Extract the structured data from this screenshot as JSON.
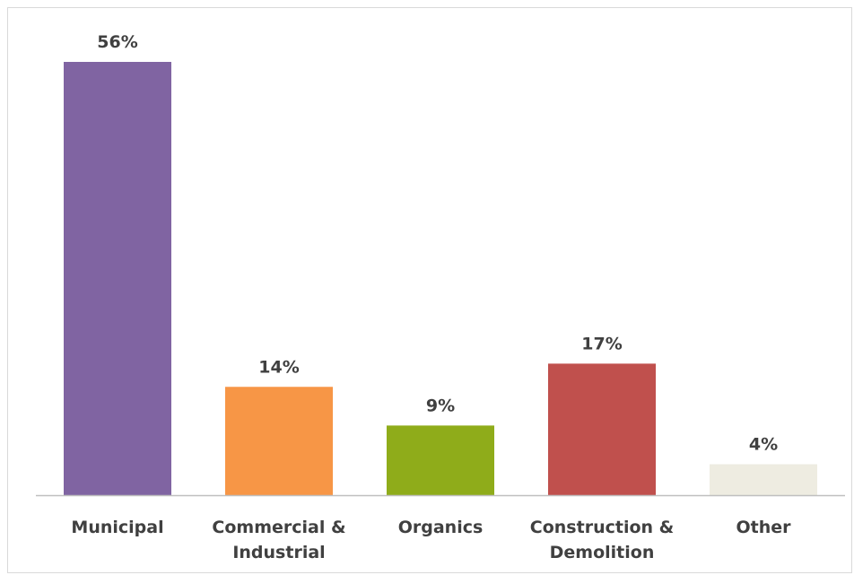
{
  "chart_data": {
    "type": "bar",
    "title": "",
    "xlabel": "",
    "ylabel": "",
    "categories": [
      [
        "Municipal"
      ],
      [
        "Commercial &",
        "Industrial"
      ],
      [
        "Organics"
      ],
      [
        "Construction &",
        "Demolition"
      ],
      [
        "Other"
      ]
    ],
    "values": [
      56,
      14,
      9,
      17,
      4
    ],
    "value_labels": [
      "56%",
      "14%",
      "9%",
      "17%",
      "4%"
    ],
    "colors": [
      "#8064a2",
      "#f79646",
      "#8fac1a",
      "#c0504d",
      "#eeece1"
    ],
    "ylim": [
      0,
      56
    ],
    "grid": false,
    "legend": "none",
    "axis_color": "#bfbfbf"
  }
}
